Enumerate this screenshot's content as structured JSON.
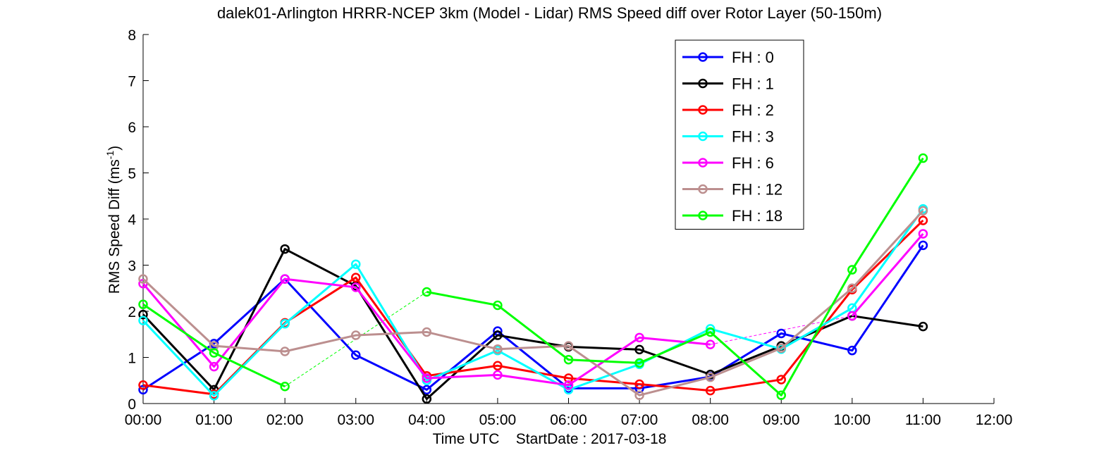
{
  "chart_data": {
    "type": "line",
    "title": "dalek01-Arlington HRRR-NCEP 3km (Model - Lidar) RMS Speed diff over Rotor Layer (50-150m)",
    "xlabel_prefix": "Time UTC",
    "xlabel_suffix": "StartDate : 2017-03-18",
    "ylabel_text": "RMS Speed Diff (ms",
    "ylabel_sup": "-1",
    "ylabel_close": ")",
    "x_ticks": [
      "00:00",
      "01:00",
      "02:00",
      "03:00",
      "04:00",
      "05:00",
      "06:00",
      "07:00",
      "08:00",
      "09:00",
      "10:00",
      "11:00",
      "12:00"
    ],
    "xlim": [
      0,
      12
    ],
    "ylim": [
      0,
      8
    ],
    "y_ticks": [
      "0",
      "1",
      "2",
      "3",
      "4",
      "5",
      "6",
      "7",
      "8"
    ],
    "grid": false,
    "legend_position": "top-right",
    "series": [
      {
        "name": "FH : 0",
        "color": "#0000ff",
        "values": [
          0.3,
          1.3,
          2.7,
          1.05,
          0.3,
          1.57,
          0.33,
          0.33,
          0.58,
          1.52,
          1.15,
          3.43
        ]
      },
      {
        "name": "FH : 1",
        "color": "#000000",
        "values": [
          1.93,
          0.3,
          3.35,
          2.55,
          0.1,
          1.48,
          1.23,
          1.17,
          0.63,
          1.25,
          1.9,
          1.67
        ]
      },
      {
        "name": "FH : 2",
        "color": "#ff0000",
        "values": [
          0.4,
          0.2,
          1.75,
          2.73,
          0.6,
          0.82,
          0.55,
          0.42,
          0.28,
          0.52,
          2.47,
          3.97
        ]
      },
      {
        "name": "FH : 3",
        "color": "#00ffff",
        "values": [
          1.8,
          0.17,
          1.73,
          3.02,
          0.5,
          1.15,
          0.3,
          0.85,
          1.62,
          1.18,
          2.07,
          4.22
        ]
      },
      {
        "name": "FH : 6",
        "color": "#ff00ff",
        "values": [
          2.6,
          0.8,
          2.7,
          2.52,
          0.55,
          0.62,
          0.4,
          1.43,
          1.28,
          null,
          1.9,
          3.68
        ]
      },
      {
        "name": "FH : 12",
        "color": "#bc8f8f",
        "values": [
          2.7,
          1.25,
          1.13,
          1.48,
          1.55,
          1.18,
          1.25,
          0.18,
          0.57,
          1.2,
          2.5,
          4.18
        ]
      },
      {
        "name": "FH : 18",
        "color": "#00ff00",
        "values": [
          2.15,
          1.1,
          0.37,
          null,
          2.42,
          2.13,
          0.95,
          0.88,
          1.55,
          0.18,
          2.9,
          5.32
        ]
      }
    ]
  }
}
